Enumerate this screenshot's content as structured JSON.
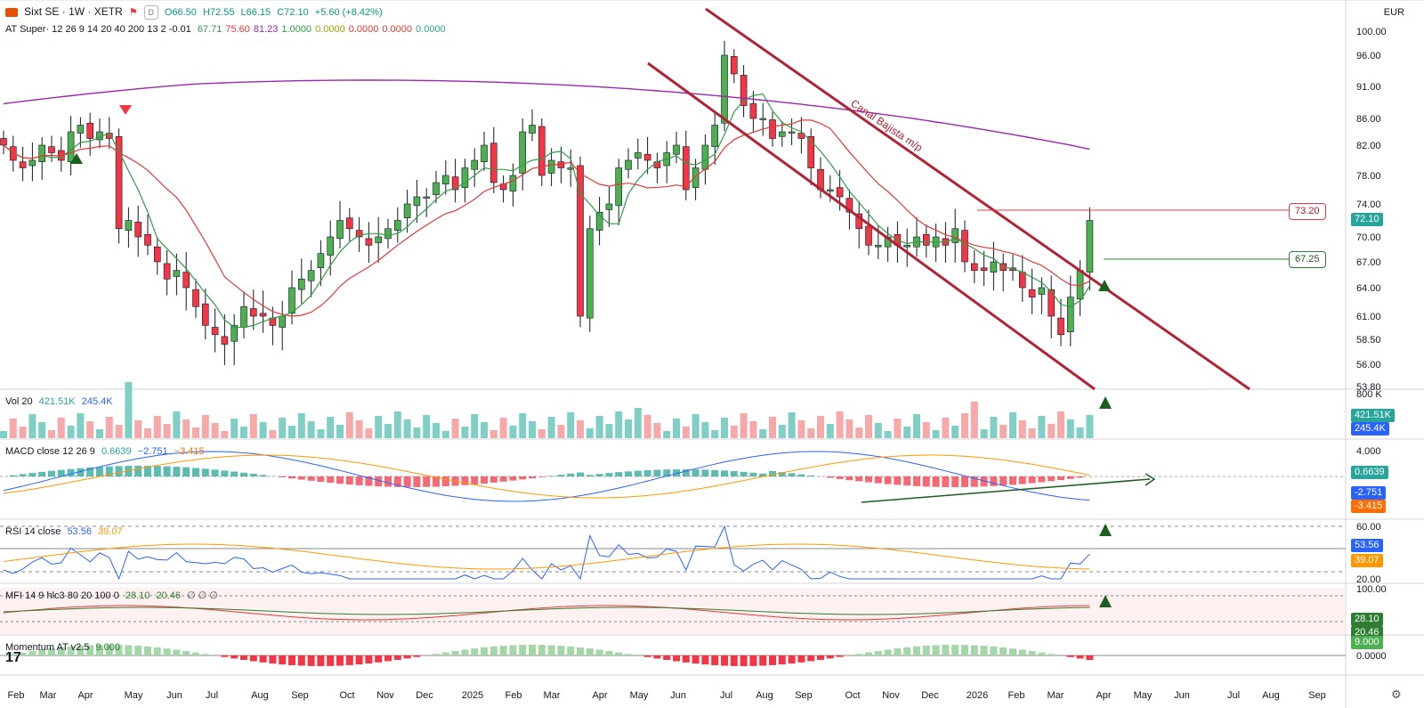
{
  "header": {
    "symbol": "Sixt SE · 1W · XETR",
    "flag_icon": "flag-icon",
    "d_label": "D",
    "ohlc": {
      "o": "O66.50",
      "h": "H72.55",
      "l": "L66.15",
      "c": "C72.10",
      "chg": "+5.60 (+8.42%)"
    },
    "indicator_line": "AT Super· 12 26 9 14 20 40 200 13 2 -0.01",
    "indicator_values": [
      "67.71",
      "75.60",
      "81.23",
      "1.0000",
      "0.0000",
      "0.0000",
      "0.0000",
      "0.0000"
    ],
    "indicator_colors": [
      "#2e9e45",
      "#e53935",
      "#9c27b0",
      "#2e9e45",
      "#a0a000",
      "#e53935",
      "#e53935",
      "#26a69a"
    ],
    "currency": "EUR"
  },
  "price_axis": {
    "ticks": [
      "100.00",
      "96.00",
      "91.00",
      "86.00",
      "82.00",
      "78.00",
      "74.00",
      "70.00",
      "67.00",
      "64.00",
      "61.00",
      "58.50",
      "56.00",
      "53.80"
    ],
    "last_price": "72.10",
    "level_high": "73.20",
    "level_low": "67.25",
    "channel_label": "Canal Bajista m/p"
  },
  "time_axis": [
    "Feb",
    "Mar",
    "Apr",
    "May",
    "Jun",
    "Jul",
    "Aug",
    "Sep",
    "Oct",
    "Nov",
    "Dec",
    "2025",
    "Feb",
    "Mar",
    "Apr",
    "May",
    "Jun",
    "Jul",
    "Aug",
    "Sep",
    "Oct",
    "Nov",
    "Dec",
    "2026",
    "Feb",
    "Mar",
    "Apr",
    "May",
    "Jun",
    "Jul",
    "Aug",
    "Sep"
  ],
  "volume": {
    "label": "Vol 20",
    "v1": "421.51K",
    "v2": "245.4K",
    "axis": "800 K",
    "badge1": "421.51K",
    "badge2": "245.4K"
  },
  "macd": {
    "label": "MACD close 12 26 9",
    "v1": "0.6639",
    "v2": "−2.751",
    "v3": "−3.415",
    "axis": "4.000",
    "badge1": "0.6639",
    "badge2": "-2.751",
    "badge3": "-3.415"
  },
  "rsi": {
    "label": "RSI 14 close",
    "v1": "53.56",
    "v2": "39.07",
    "axis_top": "60.00",
    "axis_bottom": "20.00",
    "badge1": "53.56",
    "badge2": "39.07"
  },
  "mfi": {
    "label": "MFI 14 9 hlc3 80 20 100 0",
    "v1": "28.10",
    "v2": "20.46",
    "extra": "∅ ∅ ∅",
    "axis": "100.00",
    "badge1": "28.10",
    "badge2": "20.46"
  },
  "momentum": {
    "label": "Momentum AT v2.5",
    "v1": "9.000",
    "axis": "0.0000",
    "badge1": "9.000"
  },
  "colors": {
    "up": "#4caf50",
    "down": "#f23645",
    "ma20": "#2e9e45",
    "ma50": "#e53935",
    "ma200": "#9c27b0",
    "channel": "#b22234",
    "blue": "#2962ff",
    "orange": "#ff9800"
  },
  "chart_data": [
    {
      "type": "candlestick",
      "title": "Sixt SE · 1W · XETR",
      "x": [
        "2024-W05",
        "2024-W06",
        "2024-W07",
        "2024-W08",
        "2024-W09",
        "2024-W10",
        "2024-W11",
        "2024-W12",
        "2024-W13",
        "2024-W14",
        "2024-W15",
        "2024-W16",
        "2024-W17",
        "2024-W18",
        "2024-W19",
        "2024-W20",
        "2024-W21",
        "2024-W22",
        "2024-W23",
        "2024-W24",
        "2024-W25",
        "2024-W26",
        "2024-W27",
        "2024-W28",
        "2024-W29",
        "2024-W30",
        "2024-W31",
        "2024-W32",
        "2024-W33",
        "2024-W34",
        "2024-W35",
        "2024-W36",
        "2024-W37",
        "2024-W38",
        "2024-W39",
        "2024-W40",
        "2024-W41",
        "2024-W42",
        "2024-W43",
        "2024-W44",
        "2024-W45",
        "2024-W46",
        "2024-W47",
        "2024-W48",
        "2024-W49",
        "2024-W50",
        "2024-W51",
        "2024-W52",
        "2025-W01",
        "2025-W02",
        "2025-W03",
        "2025-W04",
        "2025-W05",
        "2025-W06",
        "2025-W07",
        "2025-W08",
        "2025-W09",
        "2025-W10",
        "2025-W11",
        "2025-W12",
        "2025-W13",
        "2025-W14",
        "2025-W15",
        "2025-W16",
        "2025-W17",
        "2025-W18",
        "2025-W19",
        "2025-W20",
        "2025-W21",
        "2025-W22",
        "2025-W23",
        "2025-W24",
        "2025-W25",
        "2025-W26",
        "2025-W27",
        "2025-W28",
        "2025-W29",
        "2025-W30",
        "2025-W31",
        "2025-W32",
        "2025-W33",
        "2025-W34",
        "2025-W35",
        "2025-W36",
        "2025-W37",
        "2025-W38",
        "2025-W39",
        "2025-W40",
        "2025-W41",
        "2025-W42",
        "2025-W43",
        "2025-W44",
        "2025-W45",
        "2025-W46",
        "2025-W47",
        "2025-W48",
        "2025-W49",
        "2025-W50",
        "2025-W51",
        "2025-W52",
        "2026-W01",
        "2026-W02",
        "2026-W03",
        "2026-W04",
        "2026-W05",
        "2026-W06",
        "2026-W07",
        "2026-W08",
        "2026-W09",
        "2026-W10",
        "2026-W11",
        "2026-W12",
        "2026-W13",
        "2026-W14"
      ],
      "close": [
        82,
        80,
        79,
        80,
        82,
        81,
        80,
        84,
        85,
        83,
        84,
        83,
        71,
        72,
        70,
        69,
        67,
        65,
        66,
        64,
        62,
        60,
        59,
        58,
        60,
        62,
        61,
        61,
        60,
        61,
        64,
        65,
        66,
        68,
        70,
        72,
        71,
        70,
        69,
        70,
        71,
        72,
        74,
        75,
        75,
        77,
        78,
        76,
        79,
        80,
        82,
        77,
        76,
        78,
        84,
        85,
        78,
        80,
        79,
        79,
        61,
        71,
        73,
        74,
        79,
        80,
        81,
        80,
        79,
        81,
        82,
        76,
        79,
        82,
        85,
        96,
        93,
        88,
        86,
        86,
        83,
        84,
        84,
        83,
        79,
        76,
        76,
        75,
        73,
        71,
        69,
        69,
        70,
        69,
        69,
        70,
        69,
        70,
        69,
        71,
        67,
        66,
        66,
        67,
        66,
        66,
        64,
        63,
        64,
        61,
        59,
        63,
        66,
        72
      ],
      "ylim": [
        53.8,
        100
      ]
    },
    {
      "type": "bar",
      "title": "Vol 20",
      "series": [
        {
          "name": "Vol 20",
          "last": 421510
        },
        {
          "name": "MA",
          "last": 245400
        }
      ]
    },
    {
      "type": "line",
      "title": "MACD close 12 26 9",
      "series": [
        {
          "name": "histogram",
          "last": 0.6639
        },
        {
          "name": "macd",
          "last": -2.751
        },
        {
          "name": "signal",
          "last": -3.415
        }
      ]
    },
    {
      "type": "line",
      "title": "RSI 14 close",
      "series": [
        {
          "name": "RSI",
          "last": 53.56
        },
        {
          "name": "MA",
          "last": 39.07
        }
      ],
      "ylim": [
        20,
        80
      ]
    },
    {
      "type": "area",
      "title": "MFI 14 9 hlc3 80 20 100 0",
      "series": [
        {
          "name": "MFI",
          "last": 28.1
        },
        {
          "name": "signal",
          "last": 20.46
        }
      ],
      "ylim": [
        0,
        100
      ]
    },
    {
      "type": "bar",
      "title": "Momentum AT v2.5",
      "series": [
        {
          "name": "Momentum",
          "last": 9.0
        }
      ]
    }
  ]
}
